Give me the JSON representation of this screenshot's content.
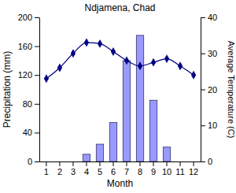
{
  "chart_data": {
    "type": "bar",
    "title": "Ndjamena, Chad",
    "x_label": "Month",
    "y_label": "Precipitation (mm)",
    "y2_label": "Average Temperature (C)",
    "categories": [
      "1",
      "2",
      "3",
      "4",
      "5",
      "6",
      "7",
      "8",
      "9",
      "10",
      "11",
      "12"
    ],
    "ylim": [
      0,
      200
    ],
    "yticks": [
      0,
      40,
      80,
      120,
      160,
      200
    ],
    "y2lim": [
      0,
      40
    ],
    "y2ticks": [
      0,
      10,
      20,
      30,
      40
    ],
    "series": [
      {
        "type": "bar",
        "color": "#9999ff",
        "values": [
          0,
          0,
          0,
          10,
          24,
          54,
          140,
          175,
          85,
          20,
          0,
          0
        ]
      },
      {
        "type": "line",
        "axis": "y2",
        "color": "#000080",
        "marker": "diamond",
        "values": [
          23,
          26,
          30,
          33,
          32.7,
          30.5,
          28,
          26.5,
          27.5,
          28.5,
          26.5,
          24
        ]
      }
    ]
  }
}
